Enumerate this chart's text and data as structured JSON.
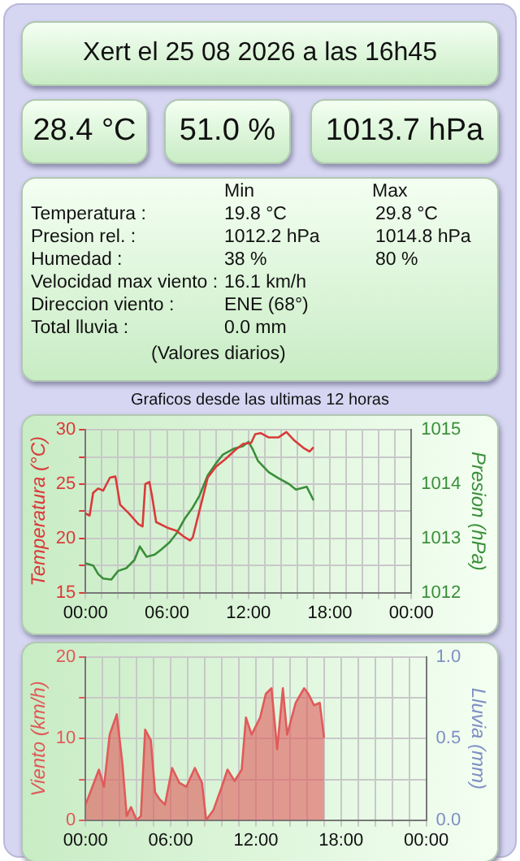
{
  "chart_data": [
    {
      "type": "other",
      "title": "Xert el 25 08 2026 a las 16h45",
      "annotations": [
        "28.4 °C",
        "51.0 %",
        "1013.7 hPa",
        "Min",
        "Max",
        "Temperatura :",
        "19.8 °C",
        "29.8 °C",
        "Presion rel. :",
        "1012.2 hPa",
        "1014.8 hPa",
        "Humedad :",
        "38 %",
        "80 %",
        "Velocidad max viento :",
        "16.1 km/h",
        null,
        "Direccion viento :",
        "ENE (68°)",
        null,
        "Total lluvia :",
        "0.0 mm",
        null,
        "(Valores diarios)"
      ]
    },
    {
      "type": "line",
      "title": "Graficos desde las ultimas 12 horas",
      "ylabel": "Temperatura (°C)",
      "y2label": "Presion (hPa)",
      "grid": true,
      "legend": false,
      "xlim": [
        0,
        24
      ],
      "xticks": [
        {
          "value": 0,
          "label": "00:00"
        },
        {
          "value": 1.2,
          "label": null
        },
        {
          "value": 2.4,
          "label": null
        },
        {
          "value": 3.6,
          "label": null
        },
        {
          "value": 4.8,
          "label": null
        },
        {
          "value": 6,
          "label": "06:00"
        },
        {
          "value": 7.2,
          "label": null
        },
        {
          "value": 8.4,
          "label": null
        },
        {
          "value": 9.6,
          "label": null
        },
        {
          "value": 10.8,
          "label": null
        },
        {
          "value": 12,
          "label": "12:00"
        },
        {
          "value": 13.2,
          "label": null
        },
        {
          "value": 14.4,
          "label": null
        },
        {
          "value": 15.6,
          "label": null
        },
        {
          "value": 16.8,
          "label": null
        },
        {
          "value": 18,
          "label": "18:00"
        },
        {
          "value": 19.2,
          "label": null
        },
        {
          "value": 20.4,
          "label": null
        },
        {
          "value": 21.6,
          "label": null
        },
        {
          "value": 22.8,
          "label": null
        },
        {
          "value": 24,
          "label": "00:00"
        }
      ],
      "ylim": [
        15,
        30
      ],
      "yticks": [
        15,
        {
          "value": 17.5,
          "label": null
        },
        20,
        {
          "value": 22.5,
          "label": null
        },
        25,
        {
          "value": 27.5,
          "label": null
        },
        30
      ],
      "y2lim": [
        1012,
        1015
      ],
      "y2ticks": [
        1012,
        {
          "value": 1012.5,
          "label": null
        },
        1013,
        {
          "value": 1013.5,
          "label": null
        },
        1014,
        {
          "value": 1014.5,
          "label": null
        },
        1015
      ],
      "series": [
        {
          "type": "line",
          "color": "#d93a3a",
          "x": [
            0,
            0.3,
            0.56,
            0.94,
            1.3,
            1.8,
            2.2,
            2.55,
            3.2,
            3.9,
            4.2,
            4.4,
            4.7,
            4.9,
            5.2,
            6.0,
            6.7,
            7.3,
            7.7,
            7.9,
            8.4,
            9.0,
            9.6,
            10.3,
            11.0,
            11.6,
            12.2,
            12.5,
            12.9,
            13.5,
            14.2,
            14.8,
            15.4,
            16.1,
            16.5,
            16.8
          ],
          "values": [
            22.3,
            22.1,
            24.2,
            24.6,
            24.4,
            25.6,
            25.7,
            23.1,
            22.3,
            21.3,
            21.1,
            25.0,
            25.2,
            23.9,
            21.5,
            21.0,
            20.7,
            20.1,
            19.8,
            20.1,
            22.6,
            25.6,
            26.6,
            27.3,
            28.1,
            28.7,
            28.8,
            29.6,
            29.7,
            29.3,
            29.3,
            29.8,
            29.0,
            28.3,
            28.0,
            28.4
          ]
        },
        {
          "type": "line",
          "color": "#3a8f3a",
          "axis": "y2",
          "x": [
            0,
            0.56,
            0.94,
            1.3,
            1.9,
            2.4,
            3.0,
            3.6,
            4.0,
            4.5,
            5.1,
            5.6,
            6.2,
            6.7,
            7.3,
            7.9,
            8.4,
            9.0,
            9.6,
            10.1,
            10.9,
            11.6,
            12.0,
            12.3,
            12.7,
            13.5,
            14.2,
            15.0,
            15.5,
            16.3,
            16.8
          ],
          "values": [
            1012.54,
            1012.5,
            1012.34,
            1012.26,
            1012.24,
            1012.4,
            1012.45,
            1012.6,
            1012.85,
            1012.66,
            1012.7,
            1012.8,
            1012.93,
            1013.09,
            1013.36,
            1013.57,
            1013.79,
            1014.16,
            1014.38,
            1014.54,
            1014.65,
            1014.7,
            1014.78,
            1014.65,
            1014.43,
            1014.22,
            1014.11,
            1014.0,
            1013.9,
            1013.95,
            1013.7
          ]
        }
      ]
    },
    {
      "type": "area",
      "ylabel": "Viento (km/h)",
      "y2label": "Lluvia (mm)",
      "grid": true,
      "legend": false,
      "xlim": [
        0,
        24
      ],
      "xticks": [
        {
          "value": 0,
          "label": "00:00"
        },
        {
          "value": 1.2,
          "label": null
        },
        {
          "value": 2.4,
          "label": null
        },
        {
          "value": 3.6,
          "label": null
        },
        {
          "value": 4.8,
          "label": null
        },
        {
          "value": 6,
          "label": "06:00"
        },
        {
          "value": 7.2,
          "label": null
        },
        {
          "value": 8.4,
          "label": null
        },
        {
          "value": 9.6,
          "label": null
        },
        {
          "value": 10.8,
          "label": null
        },
        {
          "value": 12,
          "label": "12:00"
        },
        {
          "value": 13.2,
          "label": null
        },
        {
          "value": 14.4,
          "label": null
        },
        {
          "value": 15.6,
          "label": null
        },
        {
          "value": 16.8,
          "label": null
        },
        {
          "value": 18,
          "label": "18:00"
        },
        {
          "value": 19.2,
          "label": null
        },
        {
          "value": 20.4,
          "label": null
        },
        {
          "value": 21.6,
          "label": null
        },
        {
          "value": 22.8,
          "label": null
        },
        {
          "value": 24,
          "label": "00:00"
        }
      ],
      "ylim": [
        0,
        20
      ],
      "yticks": [
        0,
        {
          "value": 5,
          "label": null
        },
        10,
        {
          "value": 15,
          "label": null
        },
        20
      ],
      "y2lim": [
        0,
        1
      ],
      "y2ticks": [
        {
          "value": 0,
          "label": "0.0"
        },
        {
          "value": 0.25,
          "label": null
        },
        {
          "value": 0.5,
          "label": "0.5"
        },
        {
          "value": 0.75,
          "label": null
        },
        {
          "value": 1,
          "label": "1.0"
        }
      ],
      "series": [
        {
          "type": "area",
          "color": "#e05a5a",
          "x": [
            0,
            0.4,
            0.94,
            1.3,
            1.7,
            2.2,
            2.6,
            2.9,
            3.2,
            3.6,
            3.9,
            4.2,
            4.6,
            4.9,
            5.2,
            5.6,
            6.1,
            6.6,
            7.1,
            7.7,
            8.2,
            8.5,
            9.0,
            9.6,
            10.0,
            10.5,
            11.0,
            11.3,
            11.7,
            12.3,
            12.7,
            13.1,
            13.5,
            13.9,
            14.2,
            14.8,
            15.4,
            15.7,
            16.1,
            16.5,
            16.8
          ],
          "values": [
            1.9,
            3.7,
            6.2,
            4.1,
            10.5,
            13.0,
            6.9,
            0.5,
            1.6,
            0,
            0.5,
            11.1,
            9.8,
            3.4,
            2.6,
            1.9,
            6.4,
            4.6,
            4.1,
            6.4,
            4.6,
            0,
            1.2,
            4.1,
            6.2,
            4.8,
            6.2,
            12.6,
            10.5,
            12.6,
            15.5,
            16.2,
            8.7,
            16.2,
            10.5,
            14.4,
            16.2,
            15.5,
            14.1,
            14.4,
            10.1
          ]
        }
      ]
    }
  ]
}
